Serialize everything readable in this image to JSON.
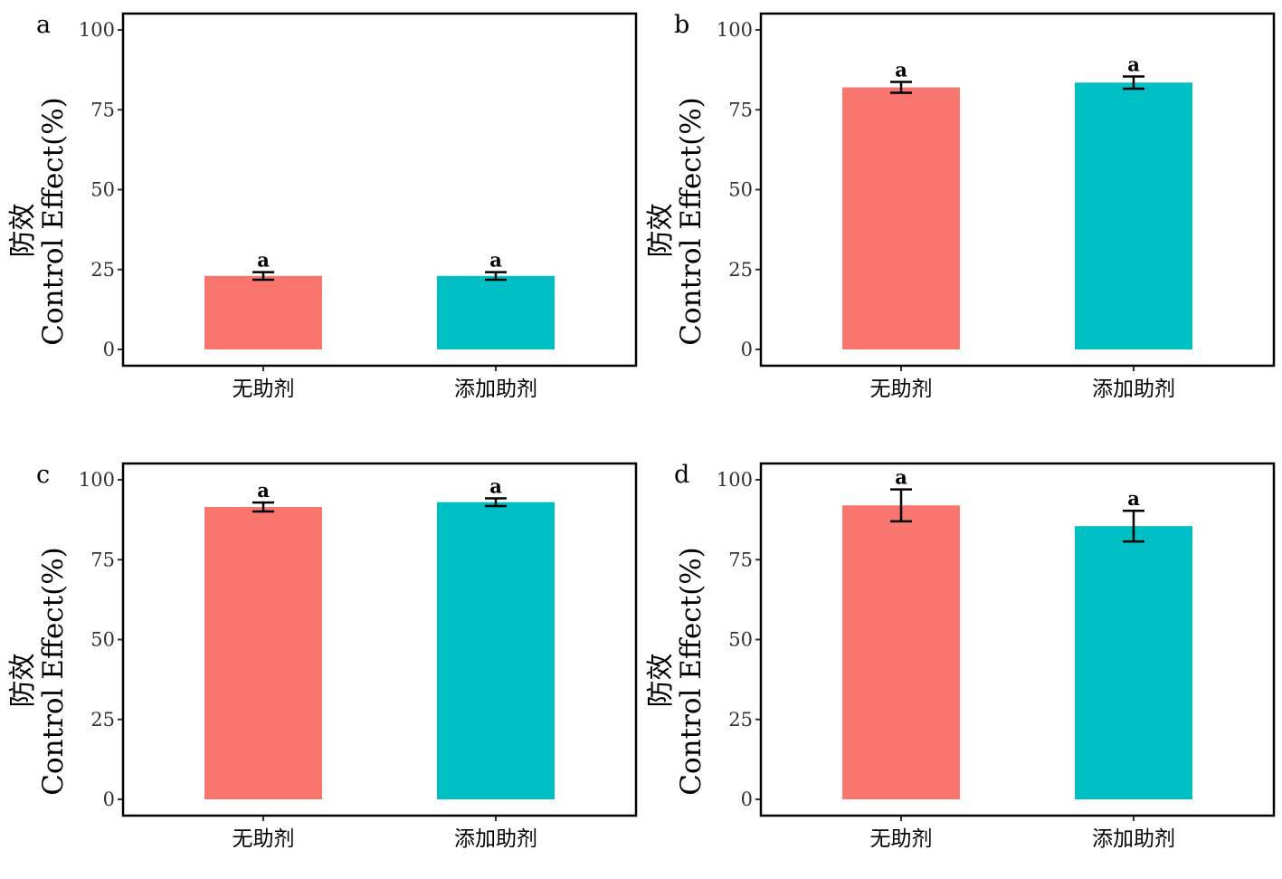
{
  "colors": {
    "bar_1": "#F8766D",
    "bar_2": "#00BFC4",
    "frame": "#000000",
    "errorbar": "#000000"
  },
  "chart_data": [
    {
      "type": "bar",
      "panel": "a",
      "categories": [
        "无助剂",
        "添加助剂"
      ],
      "values": [
        23,
        23
      ],
      "errors": [
        1.2,
        1.2
      ],
      "labels": [
        "a",
        "a"
      ],
      "ylabel_cn": "防效",
      "ylabel": "Control Effect(%)",
      "ylim": [
        0,
        100
      ],
      "yticks": [
        "0",
        "25",
        "50",
        "75",
        "100"
      ],
      "grid": false
    },
    {
      "type": "bar",
      "panel": "b",
      "categories": [
        "无助剂",
        "添加助剂"
      ],
      "values": [
        82,
        83.5
      ],
      "errors": [
        1.7,
        1.9
      ],
      "labels": [
        "a",
        "a"
      ],
      "ylabel_cn": "防效",
      "ylabel": "Control Effect(%)",
      "ylim": [
        0,
        100
      ],
      "yticks": [
        "0",
        "25",
        "50",
        "75",
        "100"
      ],
      "grid": false
    },
    {
      "type": "bar",
      "panel": "c",
      "categories": [
        "无助剂",
        "添加助剂"
      ],
      "values": [
        91.5,
        93
      ],
      "errors": [
        1.4,
        1.2
      ],
      "labels": [
        "a",
        "a"
      ],
      "ylabel_cn": "防效",
      "ylabel": "Control Effect(%)",
      "ylim": [
        0,
        100
      ],
      "yticks": [
        "0",
        "25",
        "50",
        "75",
        "100"
      ],
      "grid": false
    },
    {
      "type": "bar",
      "panel": "d",
      "categories": [
        "无助剂",
        "添加助剂"
      ],
      "values": [
        92,
        85.5
      ],
      "errors": [
        5,
        4.8
      ],
      "labels": [
        "a",
        "a"
      ],
      "ylabel_cn": "防效",
      "ylabel": "Control Effect(%)",
      "ylim": [
        0,
        100
      ],
      "yticks": [
        "0",
        "25",
        "50",
        "75",
        "100"
      ],
      "grid": false
    }
  ]
}
